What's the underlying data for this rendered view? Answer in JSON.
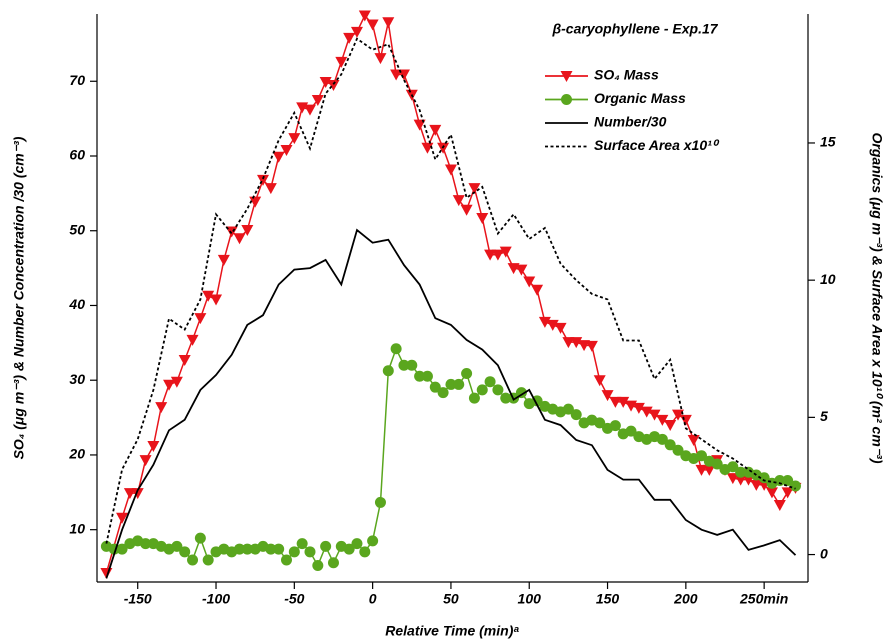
{
  "chart_data": {
    "type": "line",
    "title": "β-caryophyllene - Exp.17",
    "xlabel": "Relative Time (min)ᵃ",
    "ylabel": "SO₄ (μg m⁻³) & Number Concentration /30 (cm⁻³)",
    "y2label": "Organics (μg m⁻³) & Surface Area x 10¹⁰ (m² cm⁻³)",
    "xlim": [
      -176,
      278
    ],
    "ylim": [
      3,
      79
    ],
    "y2lim": [
      -1,
      19.7
    ],
    "xticks": [
      -150,
      -100,
      -50,
      0,
      50,
      100,
      150,
      200,
      {
        "value": 250,
        "label": "250min"
      }
    ],
    "yticks": [
      10,
      20,
      30,
      40,
      50,
      60,
      70
    ],
    "y2ticks": [
      0,
      5,
      10,
      15
    ],
    "series": [
      {
        "name": "SO₄ Mass",
        "color": "#e8141b",
        "marker": "triangle-down",
        "line_style": "solid",
        "axis": "y",
        "x": [
          -170,
          -160,
          -155,
          -150,
          -145,
          -140,
          -135,
          -130,
          -125,
          -120,
          -115,
          -110,
          -105,
          -100,
          -95,
          -90,
          -85,
          -80,
          -75,
          -70,
          -65,
          -60,
          -55,
          -50,
          -45,
          -40,
          -35,
          -30,
          -25,
          -20,
          -15,
          -10,
          -5,
          0,
          5,
          10,
          15,
          20,
          25,
          30,
          35,
          40,
          45,
          50,
          55,
          60,
          65,
          70,
          75,
          80,
          85,
          90,
          95,
          100,
          105,
          110,
          115,
          120,
          125,
          130,
          135,
          140,
          145,
          150,
          155,
          160,
          165,
          170,
          175,
          180,
          185,
          190,
          195,
          200,
          205,
          210,
          215,
          220,
          225,
          230,
          235,
          240,
          245,
          250,
          255,
          260,
          265,
          270
        ],
        "values": [
          4.2,
          11.6,
          14.9,
          14.9,
          19.3,
          21.2,
          26.4,
          29.4,
          29.8,
          32.7,
          35.4,
          38.3,
          41.3,
          40.8,
          46.1,
          49.9,
          49,
          50.1,
          53.9,
          56.8,
          55.7,
          59.9,
          60.8,
          62.4,
          66.5,
          66.2,
          67.5,
          69.9,
          69.5,
          72.6,
          75.8,
          76.6,
          78.8,
          77.6,
          73.1,
          77.9,
          70.9,
          70.9,
          68.2,
          64.2,
          61.1,
          63.5,
          61.1,
          58.2,
          54.1,
          52.8,
          55.7,
          51.7,
          46.8,
          46.8,
          47.2,
          45,
          44.8,
          43.2,
          42.1,
          37.8,
          37.4,
          37,
          35.1,
          35.1,
          34.7,
          34.6,
          30,
          28,
          27.1,
          27.1,
          26.6,
          26.3,
          25.8,
          25.4,
          24.7,
          24,
          25.4,
          24.7,
          22,
          18,
          18,
          19.3,
          18,
          16.9,
          16.7,
          16.7,
          16,
          16,
          15,
          13.3,
          15,
          15.6
        ]
      },
      {
        "name": "Organic Mass",
        "color": "#5aa61e",
        "marker": "circle",
        "line_style": "solid",
        "axis": "y2",
        "x": [
          -170,
          -165,
          -160,
          -155,
          -150,
          -145,
          -140,
          -135,
          -130,
          -125,
          -120,
          -115,
          -110,
          -105,
          -100,
          -95,
          -90,
          -85,
          -80,
          -75,
          -70,
          -65,
          -60,
          -55,
          -50,
          -45,
          -40,
          -35,
          -30,
          -25,
          -20,
          -15,
          -10,
          -5,
          0,
          5,
          10,
          15,
          20,
          25,
          30,
          35,
          40,
          45,
          50,
          55,
          60,
          65,
          70,
          75,
          80,
          85,
          90,
          95,
          100,
          105,
          110,
          115,
          120,
          125,
          130,
          135,
          140,
          145,
          150,
          155,
          160,
          165,
          170,
          175,
          180,
          185,
          190,
          195,
          200,
          205,
          210,
          215,
          220,
          225,
          230,
          235,
          240,
          245,
          250,
          255,
          260,
          265,
          270
        ],
        "values": [
          0.3,
          0.2,
          0.2,
          0.4,
          0.5,
          0.4,
          0.4,
          0.3,
          0.2,
          0.3,
          0.1,
          -0.2,
          0.6,
          -0.2,
          0.1,
          0.2,
          0.1,
          0.2,
          0.2,
          0.2,
          0.3,
          0.2,
          0.2,
          -0.2,
          0.1,
          0.4,
          0.1,
          -0.4,
          0.3,
          -0.3,
          0.3,
          0.2,
          0.4,
          0.1,
          0.5,
          1.9,
          6.7,
          7.5,
          6.9,
          6.9,
          6.5,
          6.5,
          6.1,
          5.9,
          6.2,
          6.2,
          6.6,
          5.7,
          6.0,
          6.3,
          6.0,
          5.7,
          5.7,
          5.9,
          5.5,
          5.6,
          5.4,
          5.3,
          5.2,
          5.3,
          5.1,
          4.8,
          4.9,
          4.8,
          4.6,
          4.7,
          4.4,
          4.5,
          4.3,
          4.2,
          4.3,
          4.2,
          4.0,
          3.8,
          3.6,
          3.5,
          3.6,
          3.4,
          3.3,
          3.1,
          3.2,
          3.0,
          3.0,
          2.9,
          2.8,
          2.6,
          2.7,
          2.7,
          2.5
        ]
      },
      {
        "name": "Number/30",
        "color": "#000000",
        "line_style": "solid",
        "axis": "y",
        "x": [
          -170,
          -160,
          -150,
          -140,
          -130,
          -120,
          -110,
          -100,
          -90,
          -80,
          -70,
          -60,
          -50,
          -40,
          -30,
          -20,
          -10,
          0,
          10,
          20,
          30,
          40,
          50,
          60,
          70,
          80,
          90,
          100,
          110,
          120,
          130,
          140,
          150,
          160,
          170,
          180,
          190,
          200,
          210,
          220,
          230,
          240,
          250,
          260,
          270
        ],
        "values": [
          3.5,
          10,
          15.3,
          18.7,
          23.3,
          24.7,
          28.7,
          30.7,
          33.4,
          37.4,
          38.7,
          42.8,
          44.8,
          45,
          46.1,
          42.8,
          50.1,
          48.4,
          48.8,
          45.4,
          42.8,
          38.3,
          37.4,
          35.4,
          34.1,
          32,
          27.4,
          28.7,
          24.7,
          24,
          22,
          21.3,
          18,
          16.7,
          16.7,
          14,
          14,
          11.3,
          10,
          9.3,
          10,
          7.3,
          7.9,
          8.6,
          6.6
        ]
      },
      {
        "name": "Surface Area x10¹⁰",
        "color": "#000000",
        "line_style": "dotted",
        "axis": "y2",
        "x": [
          -170,
          -160,
          -150,
          -140,
          -130,
          -120,
          -110,
          -100,
          -90,
          -80,
          -70,
          -60,
          -50,
          -40,
          -30,
          -20,
          -10,
          0,
          10,
          20,
          30,
          40,
          50,
          60,
          70,
          80,
          90,
          100,
          110,
          120,
          130,
          140,
          150,
          160,
          170,
          180,
          190,
          200,
          210,
          220,
          230,
          240,
          250,
          260,
          270
        ],
        "values": [
          0.4,
          3.1,
          4.2,
          6,
          8.6,
          8.2,
          9.3,
          12.4,
          11.7,
          12.6,
          13.7,
          15.1,
          16.1,
          14.8,
          16.8,
          17.5,
          18.8,
          18.4,
          18.6,
          17.3,
          16.2,
          14.4,
          15.3,
          13,
          13.4,
          11.7,
          12.4,
          11.5,
          11.9,
          10.6,
          10,
          9.5,
          9.3,
          7.8,
          7.8,
          6.4,
          7.1,
          4.6,
          4.2,
          3.8,
          3.5,
          3.1,
          2.7,
          2.6,
          2.4
        ]
      }
    ]
  }
}
